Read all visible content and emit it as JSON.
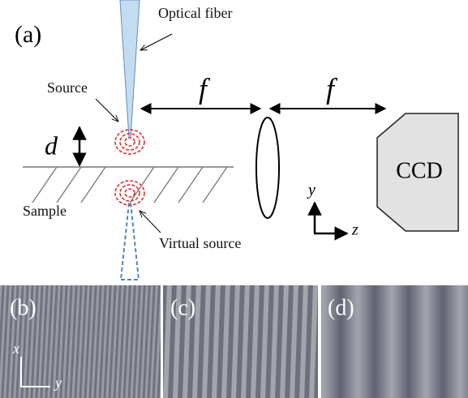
{
  "panel_a": {
    "label": "(a)",
    "fiber": "Optical fiber",
    "source": "Source",
    "focal_1": "f",
    "focal_2": "f",
    "distance": "d",
    "sample": "Sample",
    "virtual_source": "Virtual source",
    "detector": "CCD",
    "axis_y": "y",
    "axis_z": "z"
  },
  "panel_b": {
    "label": "(b)",
    "axis_x": "x",
    "axis_y": "y"
  },
  "panel_c": {
    "label": "(c)"
  },
  "panel_d": {
    "label": "(d)"
  }
}
